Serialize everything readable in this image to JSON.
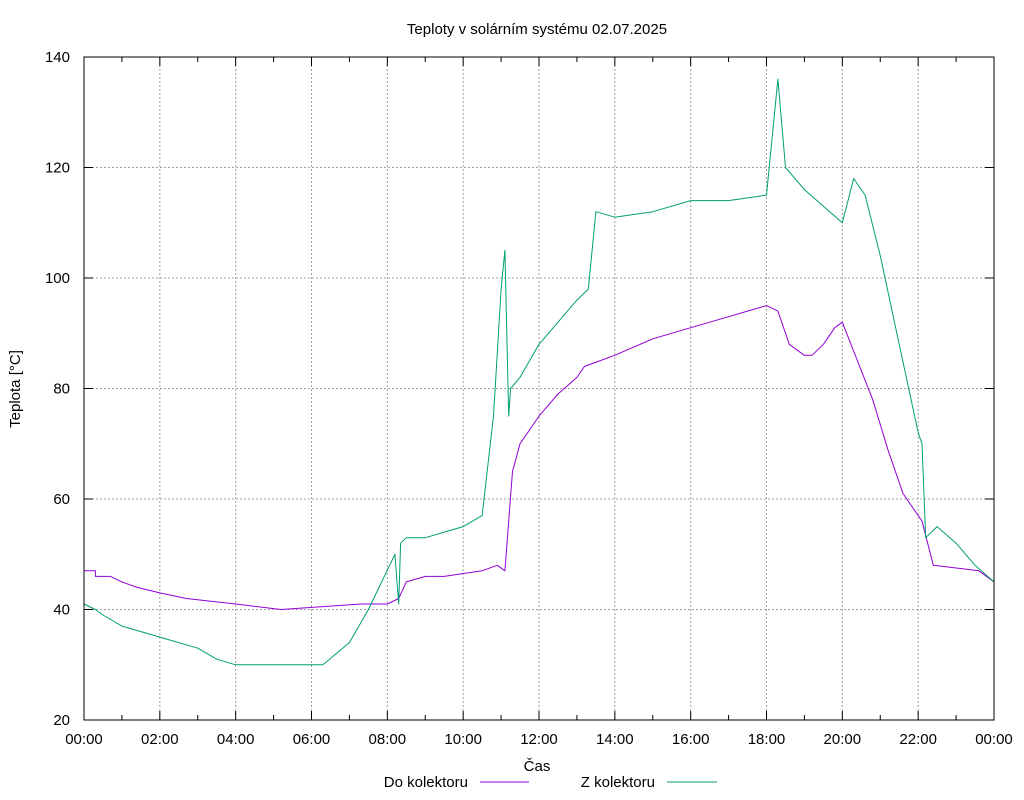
{
  "chart_data": {
    "type": "line",
    "title": "Teploty v solárním systému 02.07.2025",
    "xlabel": "Čas",
    "ylabel": "Teplota [°C]",
    "xlim": [
      "00:00",
      "24:00"
    ],
    "ylim": [
      20,
      140
    ],
    "x_ticks": [
      "00:00",
      "02:00",
      "04:00",
      "06:00",
      "08:00",
      "10:00",
      "12:00",
      "14:00",
      "16:00",
      "18:00",
      "20:00",
      "22:00",
      "00:00"
    ],
    "y_ticks": [
      20,
      40,
      60,
      80,
      100,
      120,
      140
    ],
    "grid": true,
    "legend_position": "bottom",
    "series": [
      {
        "name": "Do kolektoru",
        "color": "#9400d3",
        "x": [
          0,
          0.3,
          0.3,
          0.7,
          1.0,
          1.4,
          2.0,
          2.7,
          4.0,
          5.2,
          7.3,
          8.0,
          8.3,
          8.3,
          8.5,
          9.0,
          9.5,
          10.5,
          10.9,
          11.1,
          11.3,
          11.5,
          12.0,
          12.5,
          13.0,
          13.2,
          13.6,
          14.0,
          15.0,
          16.0,
          17.0,
          17.5,
          18.0,
          18.3,
          18.6,
          18.8,
          19.0,
          19.2,
          19.5,
          19.8,
          20.0,
          20.4,
          20.8,
          21.2,
          21.6,
          22.1,
          22.4,
          23.6,
          24.0
        ],
        "y": [
          47,
          47,
          46,
          46,
          45,
          44,
          43,
          42,
          41,
          40,
          41,
          41,
          42,
          42,
          45,
          46,
          46,
          47,
          48,
          47,
          65,
          70,
          75,
          79,
          82,
          84,
          85,
          86,
          89,
          91,
          93,
          94,
          95,
          94,
          88,
          87,
          86,
          86,
          88,
          91,
          92,
          85,
          78,
          69,
          61,
          56,
          48,
          47,
          45
        ]
      },
      {
        "name": "Z kolektoru",
        "color": "#009e73",
        "x": [
          0,
          0.3,
          0.5,
          1.0,
          1.5,
          2.0,
          3.0,
          3.5,
          4.0,
          5.0,
          6.0,
          6.3,
          7.0,
          7.5,
          8.2,
          8.3,
          8.35,
          8.5,
          9.0,
          9.5,
          10.0,
          10.5,
          10.8,
          11.0,
          11.1,
          11.2,
          11.25,
          11.5,
          12.0,
          12.5,
          13.0,
          13.3,
          13.5,
          14.0,
          15.0,
          16.0,
          17.0,
          18.0,
          18.3,
          18.5,
          19.0,
          19.5,
          20.0,
          20.3,
          20.6,
          21.0,
          21.5,
          22.0,
          22.1,
          22.2,
          22.5,
          23.0,
          23.5,
          24.0
        ],
        "y": [
          41,
          40,
          39,
          37,
          36,
          35,
          33,
          31,
          30,
          30,
          30,
          30,
          34,
          40,
          50,
          41,
          52,
          53,
          53,
          54,
          55,
          57,
          75,
          98,
          105,
          75,
          80,
          82,
          88,
          92,
          96,
          98,
          112,
          111,
          112,
          114,
          114,
          115,
          136,
          120,
          116,
          113,
          110,
          118,
          115,
          104,
          88,
          72,
          70,
          53,
          55,
          52,
          48,
          45
        ]
      }
    ]
  }
}
